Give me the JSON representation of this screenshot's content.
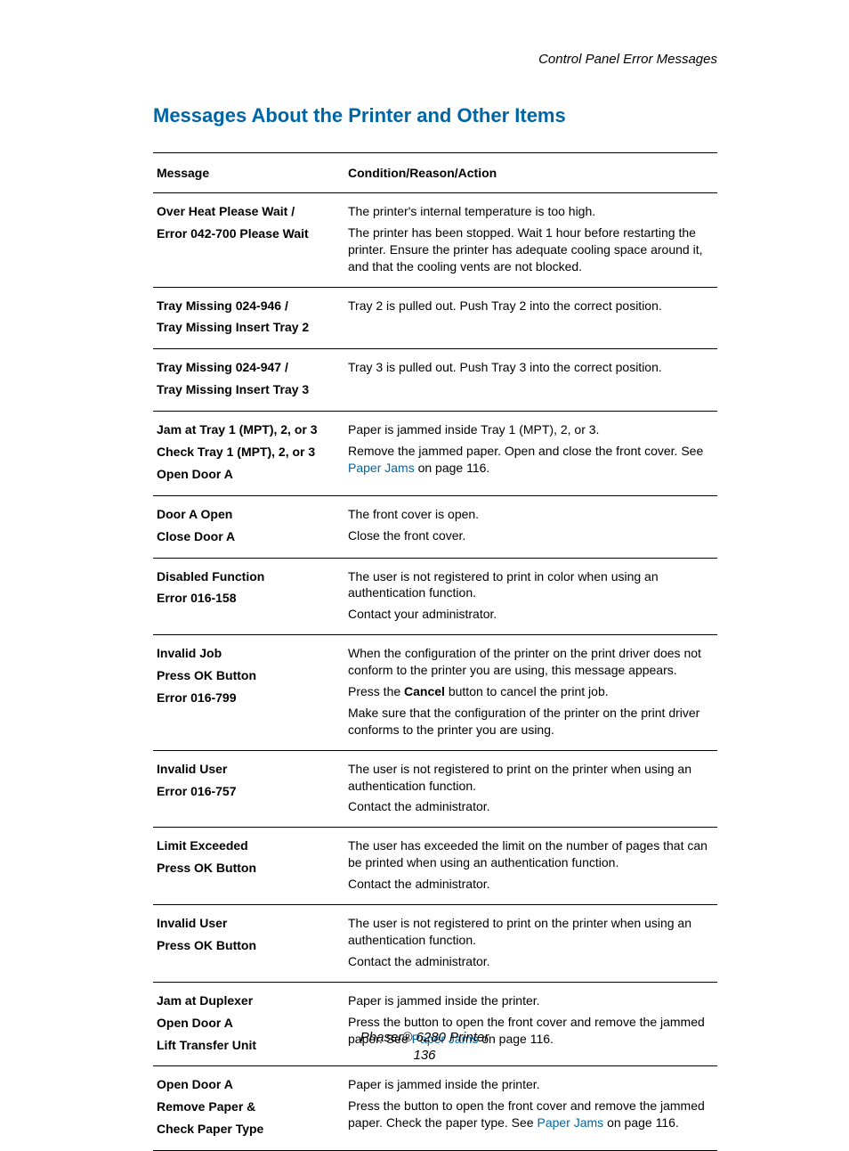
{
  "header": {
    "right": "Control Panel Error Messages"
  },
  "title": "Messages About the Printer and Other Items",
  "columns": {
    "message": "Message",
    "condition": "Condition/Reason/Action"
  },
  "link_color": "#0065a4",
  "rows": [
    {
      "msg": [
        "Over Heat Please Wait /",
        "Error 042-700 Please Wait"
      ],
      "cond": [
        {
          "t": "The printer's internal temperature is too high."
        },
        {
          "t": "The printer has been stopped. Wait 1 hour before restarting the printer. Ensure the printer has adequate cooling space around it, and that the cooling vents are not blocked."
        }
      ]
    },
    {
      "msg": [
        "Tray Missing 024-946 /",
        "Tray Missing Insert Tray 2"
      ],
      "cond": [
        {
          "t": "Tray 2 is pulled out. Push Tray 2 into the correct position."
        }
      ]
    },
    {
      "msg": [
        "Tray Missing 024-947 /",
        "Tray Missing Insert Tray 3"
      ],
      "cond": [
        {
          "t": "Tray 3 is pulled out. Push Tray 3 into the correct position."
        }
      ]
    },
    {
      "msg": [
        "Jam at Tray 1 (MPT), 2, or 3",
        "Check Tray 1 (MPT), 2, or 3",
        "Open Door A"
      ],
      "cond": [
        {
          "t": "Paper is jammed inside Tray 1 (MPT), 2, or 3."
        },
        {
          "pre": "Remove the jammed paper. Open and close the front cover. See ",
          "link": "Paper Jams",
          "post": " on page 116."
        }
      ]
    },
    {
      "msg": [
        "Door A Open",
        "Close Door A"
      ],
      "cond": [
        {
          "t": "The front cover is open."
        },
        {
          "t": "Close the front cover."
        }
      ]
    },
    {
      "msg": [
        "Disabled Function",
        "Error 016-158"
      ],
      "cond": [
        {
          "t": "The user is not registered to print in color when using an authentication function."
        },
        {
          "t": "Contact your administrator."
        }
      ]
    },
    {
      "msg": [
        "Invalid Job",
        "Press OK Button",
        "Error 016-799"
      ],
      "cond": [
        {
          "t": "When the configuration of the printer on the print driver does not conform to the printer you are using, this message appears."
        },
        {
          "pre": "Press the ",
          "bold": "Cancel",
          "post": " button to cancel the print job."
        },
        {
          "t": "Make sure that the configuration of the printer on the print driver conforms to the printer you are using."
        }
      ]
    },
    {
      "msg": [
        "Invalid User",
        "Error 016-757"
      ],
      "cond": [
        {
          "t": "The user is not registered to print on the printer when using an authentication function."
        },
        {
          "t": "Contact the administrator."
        }
      ]
    },
    {
      "msg": [
        "Limit Exceeded",
        "Press OK Button"
      ],
      "cond": [
        {
          "t": "The user has exceeded the limit on the number of pages that can be printed when using an authentication function."
        },
        {
          "t": "Contact the administrator."
        }
      ]
    },
    {
      "msg": [
        "Invalid User",
        "Press OK Button"
      ],
      "cond": [
        {
          "t": "The user is not registered to print on the printer when using an authentication function."
        },
        {
          "t": "Contact the administrator."
        }
      ]
    },
    {
      "msg": [
        "Jam at Duplexer",
        "Open Door A",
        "Lift Transfer Unit"
      ],
      "cond": [
        {
          "t": "Paper is jammed inside the printer."
        },
        {
          "pre": "Press the button to open the front cover and remove the jammed paper. See ",
          "link": "Paper Jams",
          "post": " on page 116."
        }
      ]
    },
    {
      "msg": [
        "Open Door A",
        "Remove Paper &",
        "Check Paper Type"
      ],
      "cond": [
        {
          "t": "Paper is jammed inside the printer."
        },
        {
          "pre": "Press the button to open the front cover and remove the jammed paper. Check the paper type. See ",
          "link": "Paper Jams",
          "post": " on page 116."
        }
      ]
    }
  ],
  "footer": {
    "product": "Phaser® 6280 Printer",
    "page": "136"
  }
}
